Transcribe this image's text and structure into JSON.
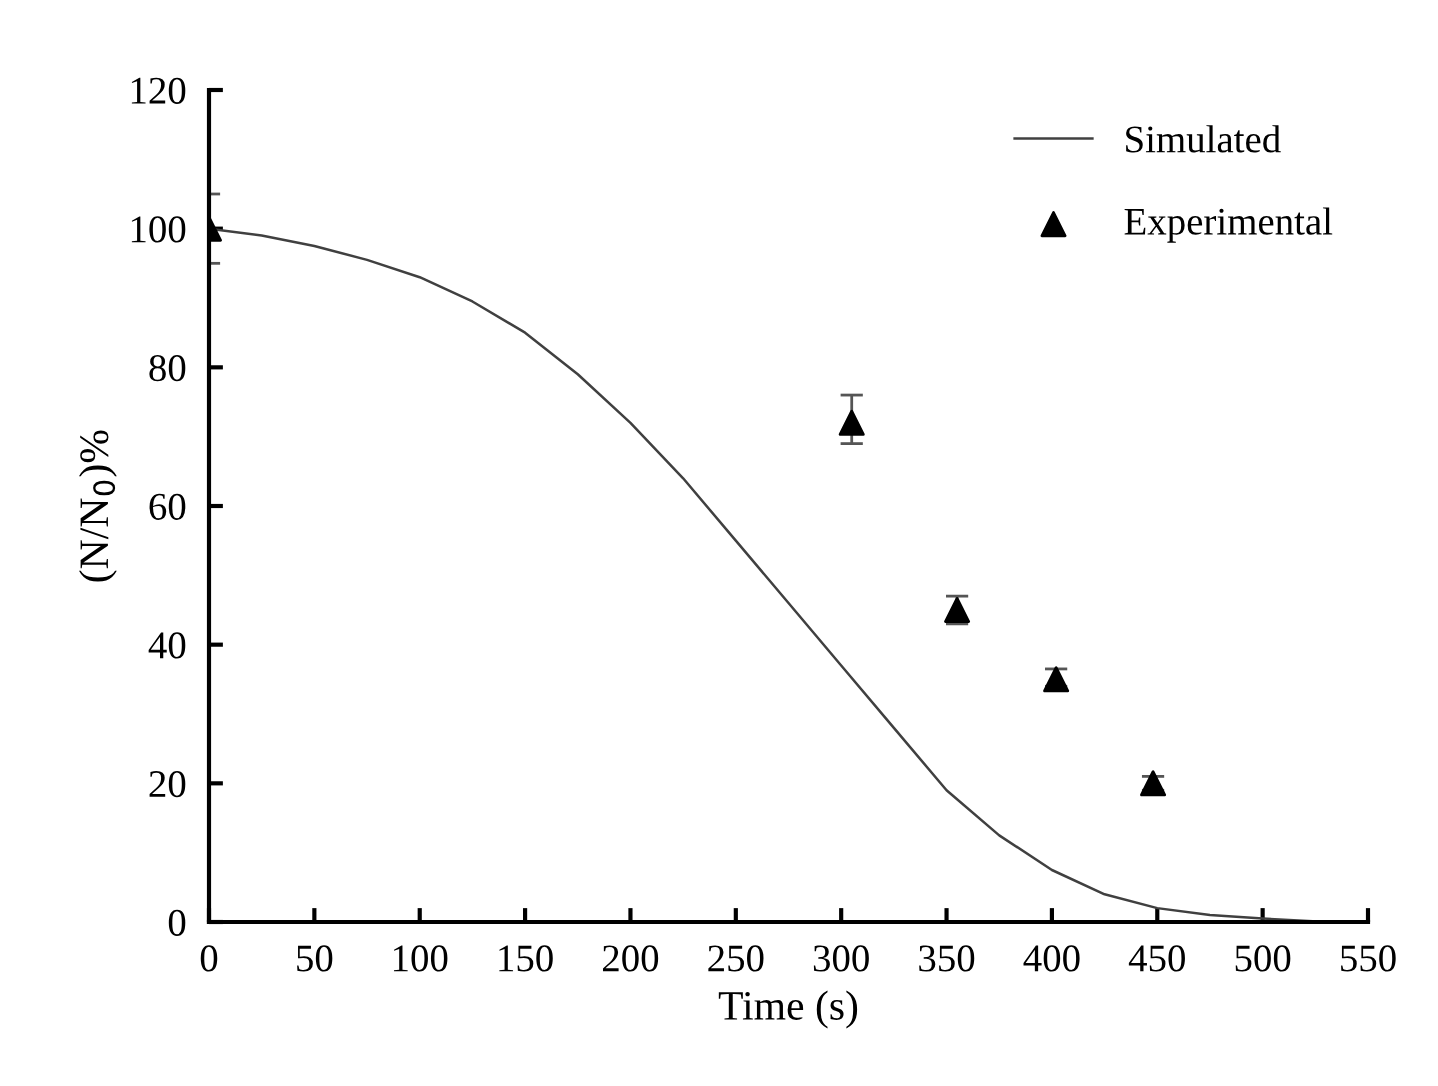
{
  "chart_data": {
    "type": "line",
    "xlabel": "Time (s)",
    "ylabel": "(N/N$_{0}$)%",
    "xlim": [
      0,
      550
    ],
    "xticks": [
      0,
      50,
      100,
      150,
      200,
      250,
      300,
      350,
      400,
      450,
      500,
      550
    ],
    "ylim": [
      0,
      120
    ],
    "yticks": [
      0,
      20,
      40,
      60,
      80,
      100,
      120
    ],
    "grid": false,
    "legend": "top right",
    "series": [
      {
        "name": "Simulated",
        "color": "#404040",
        "marker": "none",
        "line_style": "solid",
        "x": [
          0,
          25,
          50,
          75,
          100,
          125,
          150,
          175,
          200,
          225,
          250,
          275,
          300,
          325,
          350,
          375,
          400,
          425,
          450,
          475,
          500,
          530
        ],
        "values": [
          100,
          99,
          97.5,
          95.5,
          93,
          89.5,
          85,
          79,
          72,
          64,
          55,
          46,
          37,
          28,
          19,
          12.5,
          7.5,
          4,
          2,
          1,
          0.5,
          0
        ]
      },
      {
        "name": "Experimental",
        "type": "scatter",
        "color": "#000000",
        "marker": "triangle",
        "x": [
          0,
          305,
          355,
          402,
          448
        ],
        "values": [
          100,
          72,
          45,
          35,
          20
        ],
        "errors": [
          [
            95,
            105
          ],
          [
            69,
            76
          ],
          [
            43,
            47
          ],
          [
            34,
            36.5
          ],
          [
            19,
            21
          ]
        ]
      }
    ]
  }
}
